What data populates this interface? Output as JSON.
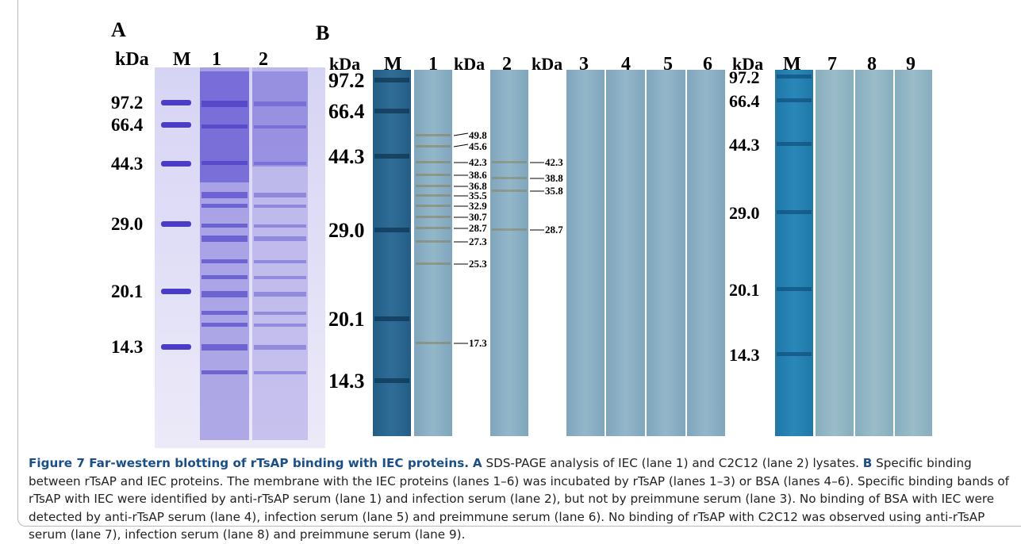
{
  "panel_a": {
    "label": "A",
    "header": [
      "kDa",
      "M",
      "1",
      "2"
    ],
    "markers": [
      "97.2",
      "66.4",
      "44.3",
      "29.0",
      "20.1",
      "14.3"
    ]
  },
  "panel_b": {
    "label": "B",
    "header": [
      "kDa",
      "M",
      "1",
      "kDa",
      "2",
      "kDa",
      "3",
      "4",
      "5",
      "6",
      "kDa",
      "M",
      "7",
      "8",
      "9"
    ],
    "left_markers": [
      "97.2",
      "66.4",
      "44.3",
      "29.0",
      "20.1",
      "14.3"
    ],
    "lane1_bands": [
      "49.8",
      "45.6",
      "42.3",
      "38.6",
      "36.8",
      "35.5",
      "32.9",
      "30.7",
      "28.7",
      "27.3",
      "25.3",
      "17.3"
    ],
    "lane2_bands": [
      "42.3",
      "38.8",
      "35.8",
      "28.7"
    ],
    "right_markers": [
      "97.2",
      "66.4",
      "44.3",
      "29.0",
      "20.1",
      "14.3"
    ]
  },
  "caption": {
    "title": "Figure 7  Far-western blotting of rTsAP binding with IEC proteins.",
    "a_label": "A",
    "a_text": "SDS-PAGE analysis of IEC (lane 1) and C2C12 (lane 2) lysates.",
    "b_label": "B",
    "b_text": "Specific binding between rTsAP and IEC proteins. The membrane with the IEC proteins (lanes 1–6) was incubated by rTsAP (lanes 1–3) or BSA (lanes 4–6). Specific binding bands of rTsAP with IEC were identified by anti-rTsAP serum (lane 1) and infection serum (lane 2), but not by preimmune serum (lane 3). No binding of BSA with IEC were detected by anti-rTsAP serum (lane 4), infection serum (lane 5) and preimmune serum (lane 6). No binding of rTsAP with C2C12 was observed using anti-rTsAP serum (lane 7), infection serum (lane 8) and preimmune serum (lane 9)."
  }
}
